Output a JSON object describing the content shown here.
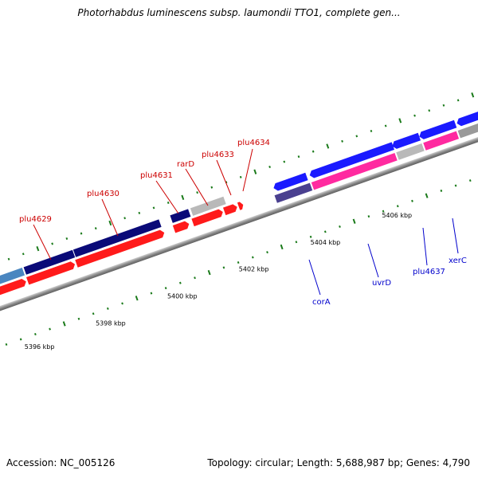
{
  "title": "Photorhabdus luminescens subsp. laumondii TTO1, complete gen...",
  "footer": {
    "accession": "Accession: NC_005126",
    "summary": "Topology: circular; Length: 5,688,987 bp; Genes: 4,790"
  },
  "scale_labels": [
    "5396 kbp",
    "5398 kbp",
    "5400 kbp",
    "5402 kbp",
    "5404 kbp",
    "5406 kbp"
  ],
  "gene_labels": {
    "forward": [
      "plu4629",
      "plu4630",
      "plu4631",
      "rarD",
      "plu4633",
      "plu4634"
    ],
    "reverse": [
      "corA",
      "uvrD",
      "plu4637",
      "xerC"
    ]
  },
  "colors": {
    "forward_label": "#cc0000",
    "reverse_label": "#0000cc",
    "backbone": "#8c8c8c",
    "tick": "#1a7a1a",
    "red_gene": "#ff1a1a",
    "navy_gene": "#0a0a78",
    "blue_gene": "#1a1aff",
    "gray_gene": "#b9b9b9",
    "pink_gene": "#ff2aa0",
    "purple_gene": "#4a4090",
    "steel_gene": "#4a86c0"
  }
}
